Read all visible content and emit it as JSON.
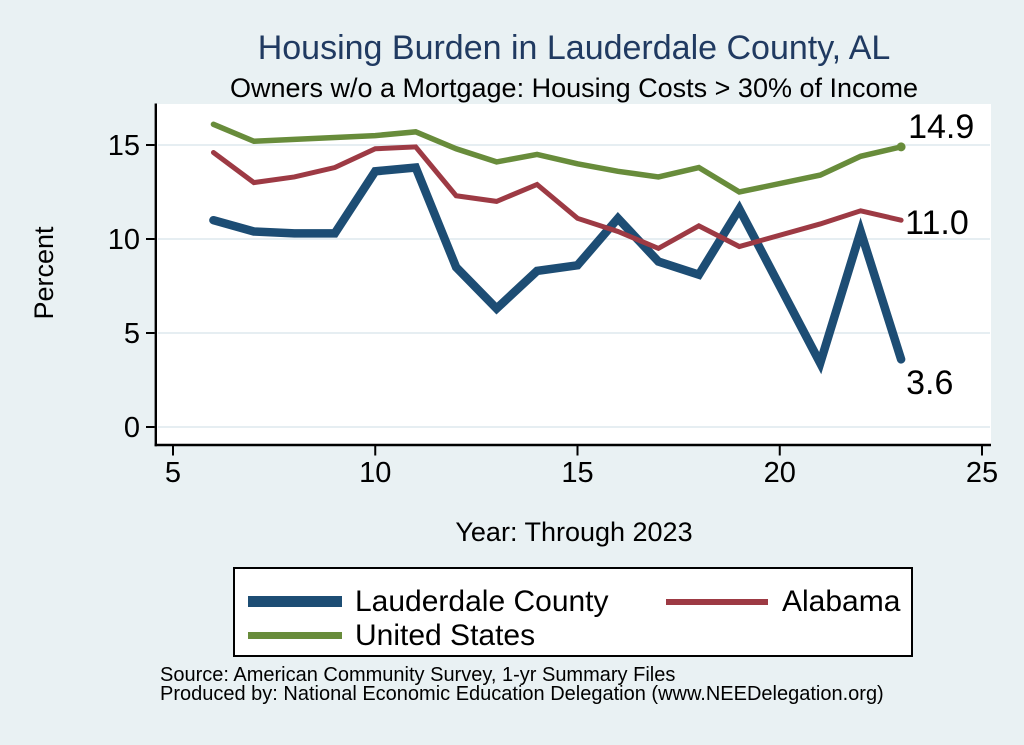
{
  "title": "Housing Burden in Lauderdale County, AL",
  "subtitle": "Owners w/o a Mortgage: Housing Costs > 30% of Income",
  "source_line1": "Source: American Community Survey, 1-yr Summary Files",
  "source_line2": "Produced by: National Economic Education Delegation (www.NEEDelegation.org)",
  "colors": {
    "background": "#e9f1f3",
    "plot_background": "#ffffff",
    "gridline": "#dde9ee",
    "axis": "#000000",
    "title_text": "#203a61",
    "series_blue": "#1d4d74",
    "series_red": "#9d3a44",
    "series_green": "#688c3b"
  },
  "legend": {
    "items": [
      {
        "label": "Lauderdale County",
        "series": 0
      },
      {
        "label": "Alabama",
        "series": 1
      },
      {
        "label": "United States",
        "series": 2
      }
    ]
  },
  "chart_data": {
    "type": "line",
    "title": "Housing Burden in Lauderdale County, AL",
    "subtitle": "Owners w/o a Mortgage: Housing Costs > 30% of Income",
    "xlabel": "Year: Through 2023",
    "ylabel": "Percent",
    "xlim": [
      5,
      25
    ],
    "ylim": [
      0,
      15
    ],
    "x_ticks": [
      5,
      10,
      15,
      20,
      25
    ],
    "y_ticks": [
      0,
      5,
      10,
      15
    ],
    "grid": "horizontal",
    "legend_position": "bottom",
    "series": [
      {
        "name": "Lauderdale County",
        "color": "#1d4d74",
        "width": 8.5,
        "x": [
          6,
          7,
          8,
          9,
          10,
          11,
          12,
          13,
          14,
          15,
          16,
          17,
          18,
          19,
          21,
          22,
          23
        ],
        "values": [
          11.0,
          10.4,
          10.3,
          10.3,
          13.6,
          13.8,
          8.5,
          6.3,
          8.3,
          8.6,
          11.1,
          8.8,
          8.1,
          11.6,
          3.4,
          10.4,
          3.6
        ],
        "end_label": "3.6",
        "end_marker": false
      },
      {
        "name": "Alabama",
        "color": "#9d3a44",
        "width": 5,
        "x": [
          6,
          7,
          8,
          9,
          10,
          11,
          12,
          13,
          14,
          15,
          16,
          17,
          18,
          19,
          21,
          22,
          23
        ],
        "values": [
          14.6,
          13.0,
          13.3,
          13.8,
          14.8,
          14.9,
          12.3,
          12.0,
          12.9,
          11.1,
          10.4,
          9.5,
          10.7,
          9.6,
          10.8,
          11.5,
          11.0
        ],
        "end_label": "11.0",
        "end_marker": false
      },
      {
        "name": "United States",
        "color": "#688c3b",
        "width": 5.5,
        "x": [
          6,
          7,
          8,
          9,
          10,
          11,
          12,
          13,
          14,
          15,
          16,
          17,
          18,
          19,
          21,
          22,
          23
        ],
        "values": [
          16.1,
          15.2,
          15.3,
          15.4,
          15.5,
          15.7,
          14.8,
          14.1,
          14.5,
          14.0,
          13.6,
          13.3,
          13.8,
          12.5,
          13.4,
          14.4,
          14.9
        ],
        "end_label": "14.9",
        "end_marker": true
      }
    ]
  }
}
